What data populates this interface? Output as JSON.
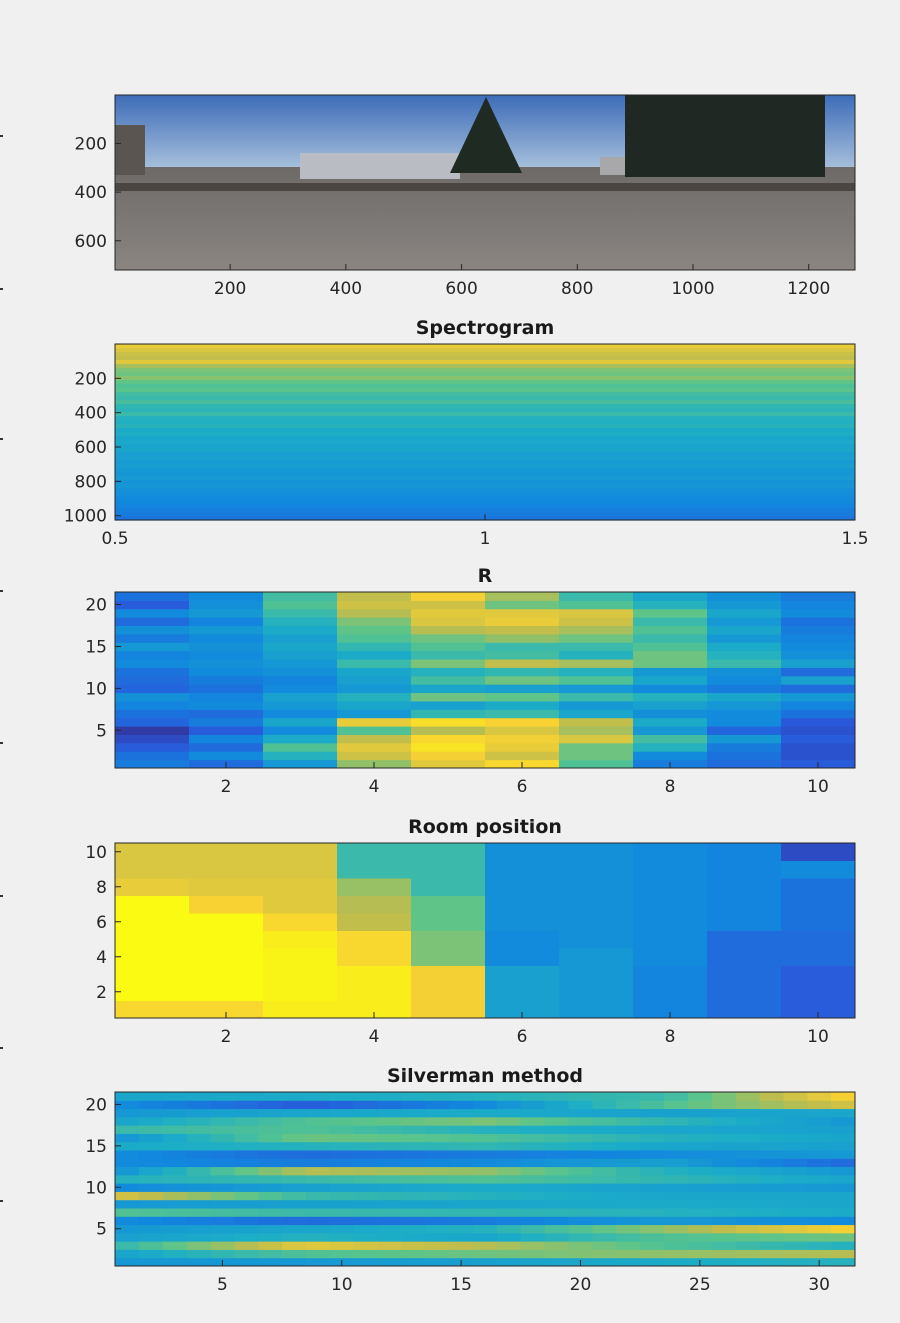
{
  "chart_data": [
    {
      "type": "image",
      "title": "",
      "content": "photo",
      "xticks": [
        "200",
        "400",
        "600",
        "800",
        "1000",
        "1200"
      ],
      "yticks": [
        "200",
        "400",
        "600"
      ],
      "xlim": [
        1,
        1280
      ],
      "ylim": [
        1,
        720
      ],
      "xtick_values": [
        200,
        400,
        600,
        800,
        1000,
        1200
      ],
      "ytick_values": [
        200,
        400,
        600
      ]
    },
    {
      "type": "heatmap",
      "title": "Spectrogram",
      "xticks": [
        "0.5",
        "1",
        "1.5"
      ],
      "yticks": [
        "200",
        "400",
        "600",
        "800",
        "1000"
      ],
      "xlim": [
        0.5,
        1.5
      ],
      "ylim": [
        0,
        1025
      ],
      "xtick_values": [
        0.5,
        1,
        1.5
      ],
      "ytick_values": [
        200,
        400,
        600,
        800,
        1000
      ],
      "cols": 1,
      "rows": [
        0.82,
        0.78,
        0.74,
        0.72,
        0.8,
        0.68,
        0.62,
        0.6,
        0.64,
        0.58,
        0.55,
        0.57,
        0.52,
        0.5,
        0.53,
        0.48,
        0.47,
        0.5,
        0.45,
        0.44,
        0.46,
        0.42,
        0.43,
        0.4,
        0.41,
        0.39,
        0.4,
        0.37,
        0.38,
        0.36,
        0.37,
        0.35,
        0.34,
        0.36,
        0.33,
        0.34,
        0.32,
        0.31,
        0.3,
        0.29,
        0.28,
        0.26,
        0.25,
        0.23
      ]
    },
    {
      "type": "heatmap",
      "title": "R",
      "xticks": [
        "2",
        "4",
        "6",
        "8",
        "10"
      ],
      "yticks": [
        "5",
        "10",
        "15",
        "20"
      ],
      "xlim": [
        0.5,
        10.5
      ],
      "ylim": [
        0.5,
        21.5
      ],
      "xtick_values": [
        2,
        4,
        6,
        8,
        10
      ],
      "ytick_values": [
        5,
        10,
        15,
        20
      ],
      "grid": [
        [
          0.25,
          0.2,
          0.35,
          0.65,
          0.8,
          0.88,
          0.55,
          0.25,
          0.2,
          0.15
        ],
        [
          0.22,
          0.3,
          0.45,
          0.75,
          0.85,
          0.75,
          0.6,
          0.3,
          0.22,
          0.12
        ],
        [
          0.15,
          0.2,
          0.55,
          0.8,
          0.92,
          0.82,
          0.6,
          0.45,
          0.25,
          0.12
        ],
        [
          0.1,
          0.28,
          0.42,
          0.72,
          0.88,
          0.84,
          0.78,
          0.52,
          0.35,
          0.15
        ],
        [
          0.05,
          0.15,
          0.3,
          0.55,
          0.7,
          0.78,
          0.68,
          0.35,
          0.18,
          0.12
        ],
        [
          0.18,
          0.25,
          0.4,
          0.82,
          0.9,
          0.86,
          0.72,
          0.42,
          0.3,
          0.14
        ],
        [
          0.22,
          0.2,
          0.3,
          0.35,
          0.48,
          0.5,
          0.4,
          0.32,
          0.3,
          0.22
        ],
        [
          0.28,
          0.3,
          0.35,
          0.4,
          0.38,
          0.42,
          0.35,
          0.38,
          0.34,
          0.28
        ],
        [
          0.32,
          0.28,
          0.38,
          0.45,
          0.6,
          0.58,
          0.5,
          0.45,
          0.4,
          0.35
        ],
        [
          0.18,
          0.22,
          0.3,
          0.35,
          0.4,
          0.38,
          0.35,
          0.3,
          0.25,
          0.2
        ],
        [
          0.2,
          0.25,
          0.28,
          0.38,
          0.52,
          0.6,
          0.55,
          0.4,
          0.3,
          0.38
        ],
        [
          0.22,
          0.3,
          0.32,
          0.4,
          0.45,
          0.48,
          0.45,
          0.35,
          0.32,
          0.2
        ],
        [
          0.3,
          0.32,
          0.35,
          0.5,
          0.62,
          0.72,
          0.68,
          0.6,
          0.5,
          0.38
        ],
        [
          0.28,
          0.3,
          0.38,
          0.42,
          0.5,
          0.52,
          0.45,
          0.6,
          0.45,
          0.32
        ],
        [
          0.35,
          0.32,
          0.4,
          0.48,
          0.55,
          0.5,
          0.5,
          0.55,
          0.42,
          0.3
        ],
        [
          0.25,
          0.3,
          0.38,
          0.55,
          0.6,
          0.65,
          0.6,
          0.5,
          0.35,
          0.28
        ],
        [
          0.32,
          0.35,
          0.42,
          0.58,
          0.7,
          0.72,
          0.68,
          0.55,
          0.4,
          0.25
        ],
        [
          0.2,
          0.28,
          0.45,
          0.62,
          0.78,
          0.82,
          0.75,
          0.5,
          0.35,
          0.22
        ],
        [
          0.3,
          0.35,
          0.5,
          0.7,
          0.8,
          0.8,
          0.78,
          0.58,
          0.4,
          0.3
        ],
        [
          0.15,
          0.32,
          0.55,
          0.75,
          0.75,
          0.6,
          0.55,
          0.45,
          0.35,
          0.28
        ],
        [
          0.22,
          0.3,
          0.52,
          0.72,
          0.85,
          0.68,
          0.5,
          0.4,
          0.32,
          0.25
        ]
      ]
    },
    {
      "type": "heatmap",
      "title": "Room position",
      "xticks": [
        "2",
        "4",
        "6",
        "8",
        "10"
      ],
      "yticks": [
        "2",
        "4",
        "6",
        "8",
        "10"
      ],
      "xlim": [
        0.5,
        10.5
      ],
      "ylim": [
        0.5,
        10.5
      ],
      "xtick_values": [
        2,
        4,
        6,
        8,
        10
      ],
      "ytick_values": [
        2,
        4,
        6,
        8,
        10
      ],
      "grid": [
        [
          0.88,
          0.88,
          0.96,
          0.96,
          0.85,
          0.38,
          0.35,
          0.28,
          0.2,
          0.15
        ],
        [
          1.0,
          1.0,
          0.98,
          0.96,
          0.85,
          0.38,
          0.35,
          0.28,
          0.2,
          0.15
        ],
        [
          1.0,
          1.0,
          0.98,
          0.96,
          0.85,
          0.38,
          0.35,
          0.28,
          0.2,
          0.15
        ],
        [
          1.0,
          1.0,
          0.98,
          0.88,
          0.62,
          0.3,
          0.35,
          0.3,
          0.2,
          0.2
        ],
        [
          1.0,
          1.0,
          0.96,
          0.88,
          0.62,
          0.3,
          0.32,
          0.3,
          0.2,
          0.2
        ],
        [
          1.0,
          1.0,
          0.88,
          0.72,
          0.58,
          0.32,
          0.32,
          0.3,
          0.28,
          0.22
        ],
        [
          1.0,
          0.86,
          0.8,
          0.7,
          0.58,
          0.32,
          0.32,
          0.3,
          0.28,
          0.22
        ],
        [
          0.82,
          0.8,
          0.8,
          0.66,
          0.5,
          0.32,
          0.32,
          0.3,
          0.28,
          0.22
        ],
        [
          0.78,
          0.78,
          0.78,
          0.5,
          0.5,
          0.32,
          0.32,
          0.3,
          0.28,
          0.3
        ],
        [
          0.78,
          0.78,
          0.78,
          0.5,
          0.5,
          0.32,
          0.32,
          0.3,
          0.28,
          0.1
        ]
      ]
    },
    {
      "type": "heatmap",
      "title": "Silverman method",
      "xticks": [
        "5",
        "10",
        "15",
        "20",
        "25",
        "30"
      ],
      "yticks": [
        "5",
        "10",
        "15",
        "20"
      ],
      "xlim": [
        0.5,
        31.5
      ],
      "ylim": [
        0.5,
        21.5
      ],
      "xtick_values": [
        5,
        10,
        15,
        20,
        25,
        30
      ],
      "ytick_values": [
        5,
        10,
        15,
        20
      ],
      "row_profile": [
        [
          0.35,
          0.35,
          0.38,
          0.42,
          0.45
        ],
        [
          0.4,
          0.55,
          0.6,
          0.65,
          0.7
        ],
        [
          0.5,
          0.8,
          0.7,
          0.55,
          0.45
        ],
        [
          0.38,
          0.45,
          0.4,
          0.55,
          0.6
        ],
        [
          0.35,
          0.4,
          0.45,
          0.65,
          0.85
        ],
        [
          0.3,
          0.2,
          0.25,
          0.35,
          0.3
        ],
        [
          0.55,
          0.5,
          0.48,
          0.45,
          0.42
        ],
        [
          0.35,
          0.38,
          0.4,
          0.42,
          0.4
        ],
        [
          0.75,
          0.5,
          0.45,
          0.4,
          0.4
        ],
        [
          0.3,
          0.38,
          0.42,
          0.38,
          0.35
        ],
        [
          0.45,
          0.5,
          0.55,
          0.48,
          0.4
        ],
        [
          0.35,
          0.7,
          0.65,
          0.45,
          0.35
        ],
        [
          0.3,
          0.25,
          0.3,
          0.38,
          0.2
        ],
        [
          0.3,
          0.2,
          0.25,
          0.3,
          0.35
        ],
        [
          0.42,
          0.45,
          0.48,
          0.4,
          0.38
        ],
        [
          0.35,
          0.6,
          0.55,
          0.45,
          0.4
        ],
        [
          0.5,
          0.55,
          0.45,
          0.4,
          0.38
        ],
        [
          0.4,
          0.55,
          0.62,
          0.48,
          0.35
        ],
        [
          0.35,
          0.4,
          0.42,
          0.38,
          0.4
        ],
        [
          0.3,
          0.15,
          0.3,
          0.55,
          0.75
        ],
        [
          0.4,
          0.42,
          0.45,
          0.5,
          0.85
        ]
      ]
    }
  ]
}
